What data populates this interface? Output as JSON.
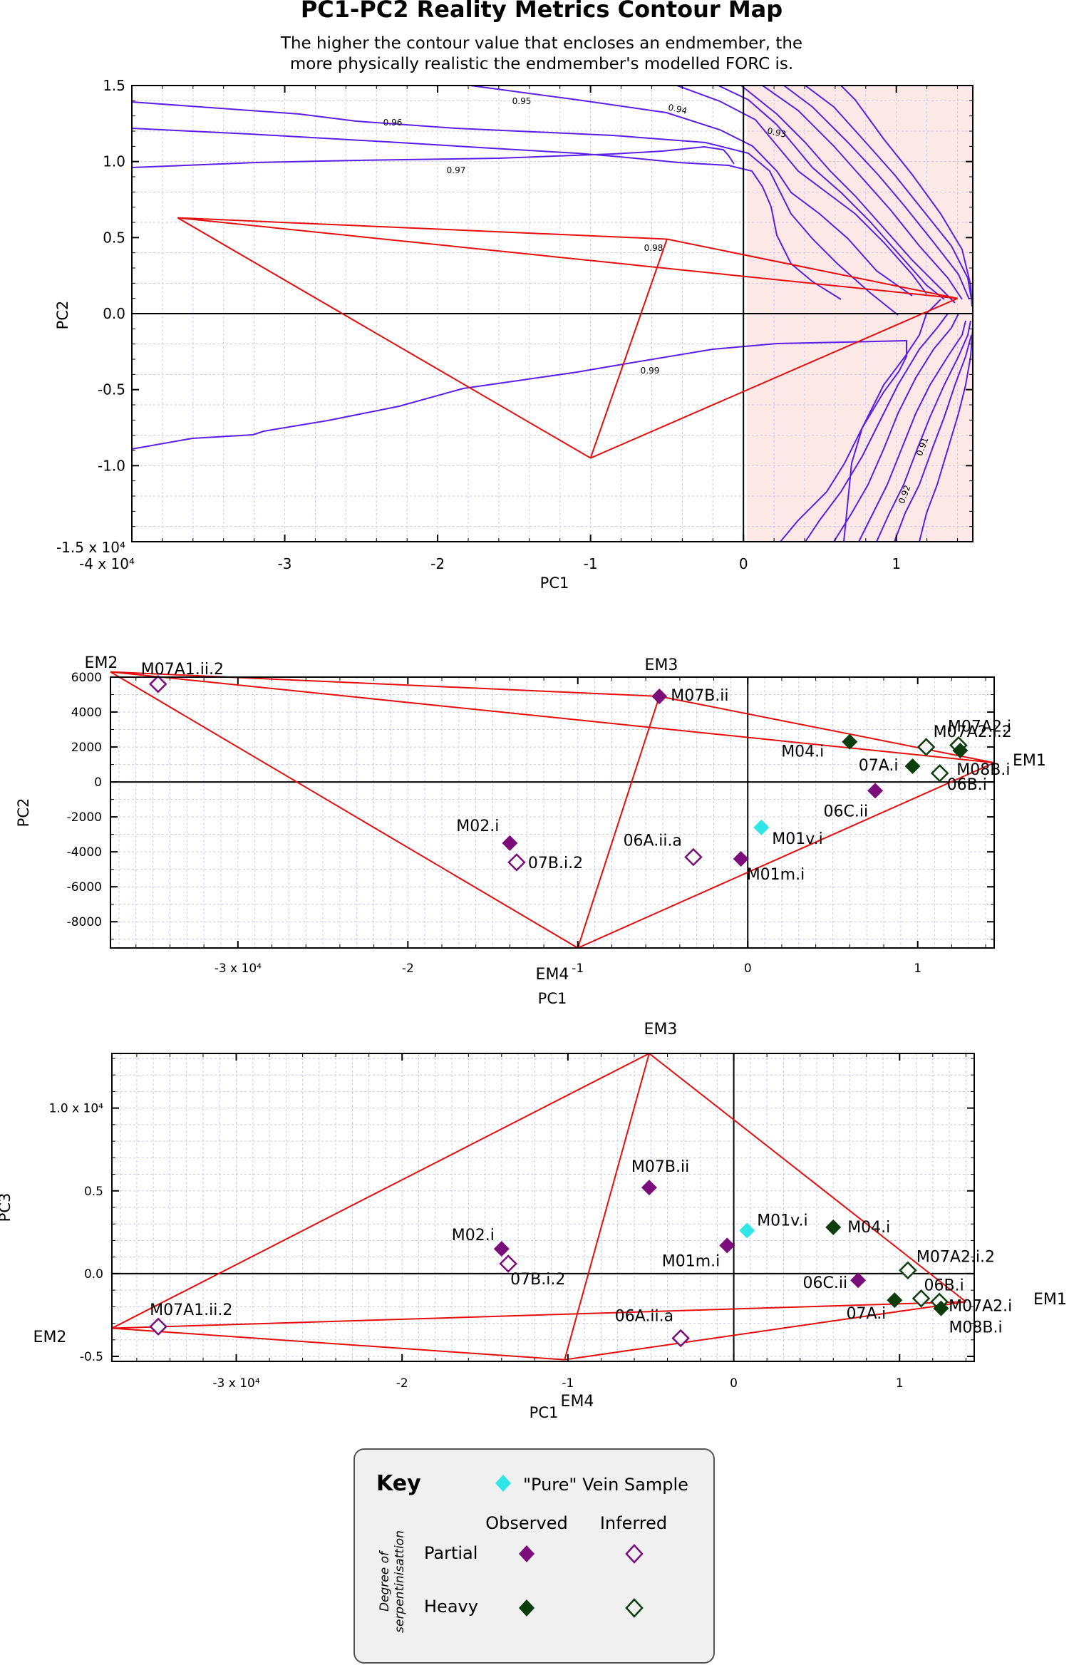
{
  "header": {
    "title": "PC1-PC2 Reality Metrics Contour Map",
    "subtitle_line1": "The higher the contour value that encloses an endmember, the",
    "subtitle_line2": "more physically realistic the endmember's modelled FORC is."
  },
  "colors": {
    "partial": "#7b0d7b",
    "heavy": "#0d3d0d",
    "vein": "#2ee6e6",
    "contour": "#5a1fe6",
    "polygon": "#e60d0d",
    "unrealistic_fill": "#fde8e8",
    "grid": "#c8c8f0"
  },
  "chart_data": [
    {
      "type": "contour",
      "title": "PC1-PC2 Reality Metrics Contour Map",
      "xlabel": "PC1",
      "ylabel": "PC2",
      "xlim": [
        -40000,
        15000
      ],
      "ylim": [
        -15000,
        15000
      ],
      "x_ticks": [
        "-4 x 10⁴",
        "-3",
        "-2",
        "-1",
        "0",
        "1"
      ],
      "y_ticks": [
        "-1.5 x 10⁴",
        "-1.0",
        "-0.5",
        "0.0",
        "0.5",
        "1.0",
        "1.5"
      ],
      "contour_levels": [
        "0.91",
        "0.92",
        "0.93",
        "0.94",
        "0.95",
        "0.96",
        "0.97",
        "0.98",
        "0.99"
      ],
      "endmembers": [
        {
          "name": "EM1",
          "x": 14000,
          "y": 1000
        },
        {
          "name": "EM2",
          "x": -37000,
          "y": 6300
        },
        {
          "name": "EM3",
          "x": -5000,
          "y": 4900
        },
        {
          "name": "EM4",
          "x": -10000,
          "y": -9500
        }
      ]
    },
    {
      "type": "scatter",
      "xlabel": "PC1",
      "ylabel": "PC2",
      "xlim": [
        -37500,
        14500
      ],
      "ylim": [
        -9500,
        6000
      ],
      "x_ticks": [
        "-3 x 10⁴",
        "-2",
        "-1",
        "0",
        "1"
      ],
      "y_ticks": [
        "-8000",
        "-6000",
        "-4000",
        "-2000",
        "0",
        "2000",
        "4000",
        "6000"
      ],
      "endmember_labels": [
        "EM1",
        "EM2",
        "EM3",
        "EM4"
      ],
      "endmembers": [
        {
          "name": "EM1",
          "x": 14500,
          "y": 1100
        },
        {
          "name": "EM2",
          "x": -37500,
          "y": 6300
        },
        {
          "name": "EM3",
          "x": -5200,
          "y": 4900
        },
        {
          "name": "EM4",
          "x": -10000,
          "y": -9500
        }
      ],
      "points": [
        {
          "label": "M07A1.ii.2",
          "x": -34700,
          "y": 5600,
          "class": "partial",
          "status": "inferred"
        },
        {
          "label": "M07B.ii",
          "x": -5200,
          "y": 4900,
          "class": "partial",
          "status": "observed"
        },
        {
          "label": "M07A2.i.2",
          "x": 10500,
          "y": 2000,
          "class": "heavy",
          "status": "inferred"
        },
        {
          "label": "M07A2.i",
          "x": 12400,
          "y": 2100,
          "class": "heavy",
          "status": "inferred"
        },
        {
          "label": "M04.i",
          "x": 6000,
          "y": 2300,
          "class": "heavy",
          "status": "observed"
        },
        {
          "label": "07A.i",
          "x": 9700,
          "y": 900,
          "class": "heavy",
          "status": "observed"
        },
        {
          "label": "M08B.i",
          "x": 12500,
          "y": 1800,
          "class": "heavy",
          "status": "observed"
        },
        {
          "label": "06B.i",
          "x": 11300,
          "y": 500,
          "class": "heavy",
          "status": "inferred"
        },
        {
          "label": "06C.ii",
          "x": 7500,
          "y": -500,
          "class": "partial",
          "status": "observed"
        },
        {
          "label": "M01v.i",
          "x": 800,
          "y": -2600,
          "class": "vein",
          "status": "observed"
        },
        {
          "label": "M02.i",
          "x": -14000,
          "y": -3500,
          "class": "partial",
          "status": "observed"
        },
        {
          "label": "07B.i.2",
          "x": -13600,
          "y": -4600,
          "class": "partial",
          "status": "inferred"
        },
        {
          "label": "06A.ii.a",
          "x": -3200,
          "y": -4300,
          "class": "partial",
          "status": "inferred"
        },
        {
          "label": "M01m.i",
          "x": -400,
          "y": -4400,
          "class": "partial",
          "status": "observed"
        }
      ]
    },
    {
      "type": "scatter",
      "xlabel": "PC1",
      "ylabel": "PC3",
      "xlim": [
        -37500,
        14500
      ],
      "ylim": [
        -5300,
        13300
      ],
      "x_ticks": [
        "-3 x 10⁴",
        "-2",
        "-1",
        "0",
        "1"
      ],
      "y_ticks": [
        "-0.5",
        "0.0",
        "0.5",
        "1.0 x 10⁴"
      ],
      "endmember_labels": [
        "EM1",
        "EM2",
        "EM3",
        "EM4"
      ],
      "endmembers": [
        {
          "name": "EM1",
          "x": 14000,
          "y": -1700
        },
        {
          "name": "EM2",
          "x": -37500,
          "y": -3300
        },
        {
          "name": "EM3",
          "x": -5100,
          "y": 13300
        },
        {
          "name": "EM4",
          "x": -10200,
          "y": -5200
        }
      ],
      "points": [
        {
          "label": "M07A1.ii.2",
          "x": -34700,
          "y": -3200,
          "class": "partial",
          "status": "inferred"
        },
        {
          "label": "M07B.ii",
          "x": -5100,
          "y": 5200,
          "class": "partial",
          "status": "observed"
        },
        {
          "label": "M02.i",
          "x": -14000,
          "y": 1500,
          "class": "partial",
          "status": "observed"
        },
        {
          "label": "07B.i.2",
          "x": -13600,
          "y": 600,
          "class": "partial",
          "status": "inferred"
        },
        {
          "label": "M01v.i",
          "x": 800,
          "y": 2600,
          "class": "vein",
          "status": "observed"
        },
        {
          "label": "M01m.i",
          "x": -400,
          "y": 1700,
          "class": "partial",
          "status": "observed"
        },
        {
          "label": "M04.i",
          "x": 6000,
          "y": 2800,
          "class": "heavy",
          "status": "observed"
        },
        {
          "label": "06C.ii",
          "x": 7500,
          "y": -400,
          "class": "partial",
          "status": "observed"
        },
        {
          "label": "M07A2.i.2",
          "x": 10500,
          "y": 200,
          "class": "heavy",
          "status": "inferred"
        },
        {
          "label": "06B.i",
          "x": 11300,
          "y": -1500,
          "class": "heavy",
          "status": "inferred"
        },
        {
          "label": "M07A2.i",
          "x": 12400,
          "y": -1700,
          "class": "heavy",
          "status": "inferred"
        },
        {
          "label": "07A.i",
          "x": 9700,
          "y": -1600,
          "class": "heavy",
          "status": "observed"
        },
        {
          "label": "M08B.i",
          "x": 12500,
          "y": -2100,
          "class": "heavy",
          "status": "observed"
        },
        {
          "label": "06A.ii.a",
          "x": -3200,
          "y": -3900,
          "class": "partial",
          "status": "inferred"
        }
      ]
    }
  ],
  "key": {
    "title": "Key",
    "vein_label": "\"Pure\" Vein Sample",
    "observed": "Observed",
    "inferred": "Inferred",
    "partial": "Partial",
    "heavy": "Heavy",
    "degree_line1": "Degree of",
    "degree_line2": "serpentinisattion"
  }
}
